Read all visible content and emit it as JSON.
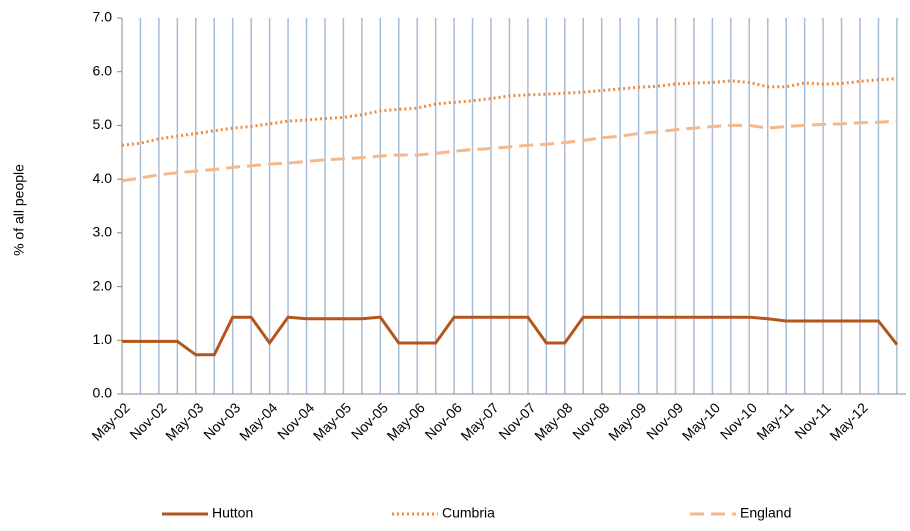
{
  "chart_data": {
    "type": "line",
    "y_label": "% of all people",
    "categories": [
      "May-02",
      null,
      "Nov-02",
      null,
      "May-03",
      null,
      "Nov-03",
      null,
      "May-04",
      null,
      "Nov-04",
      null,
      "May-05",
      null,
      "Nov-05",
      null,
      "May-06",
      null,
      "Nov-06",
      null,
      "May-07",
      null,
      "Nov-07",
      null,
      "May-08",
      null,
      "Nov-08",
      null,
      "May-09",
      null,
      "Nov-09",
      null,
      "May-10",
      null,
      "Nov-10",
      null,
      "May-11",
      null,
      "Nov-11",
      null,
      "May-12",
      null,
      null
    ],
    "series": [
      {
        "name": "Hutton",
        "color": "#b5541c",
        "dash": "solid",
        "values": [
          0.98,
          0.98,
          0.98,
          0.98,
          0.73,
          0.73,
          1.43,
          1.43,
          0.95,
          1.43,
          1.4,
          1.4,
          1.4,
          1.4,
          1.43,
          0.95,
          0.95,
          0.95,
          1.43,
          1.43,
          1.43,
          1.43,
          1.43,
          0.95,
          0.95,
          1.43,
          1.43,
          1.43,
          1.43,
          1.43,
          1.43,
          1.43,
          1.43,
          1.43,
          1.43,
          1.4,
          1.36,
          1.36,
          1.36,
          1.36,
          1.36,
          1.36,
          0.92
        ]
      },
      {
        "name": "Cumbria",
        "color": "#f08a3c",
        "dash": "dotted",
        "values": [
          4.63,
          4.67,
          4.75,
          4.8,
          4.85,
          4.9,
          4.95,
          4.98,
          5.03,
          5.08,
          5.1,
          5.13,
          5.15,
          5.2,
          5.27,
          5.3,
          5.32,
          5.4,
          5.43,
          5.46,
          5.5,
          5.55,
          5.57,
          5.58,
          5.6,
          5.62,
          5.65,
          5.68,
          5.71,
          5.73,
          5.77,
          5.79,
          5.8,
          5.83,
          5.8,
          5.72,
          5.72,
          5.79,
          5.77,
          5.78,
          5.82,
          5.85,
          5.87
        ]
      },
      {
        "name": "England",
        "color": "#f5b88a",
        "dash": "dashed",
        "values": [
          3.97,
          4.02,
          4.08,
          4.12,
          4.15,
          4.18,
          4.22,
          4.25,
          4.28,
          4.3,
          4.33,
          4.36,
          4.38,
          4.4,
          4.43,
          4.45,
          4.45,
          4.48,
          4.52,
          4.55,
          4.57,
          4.6,
          4.63,
          4.65,
          4.68,
          4.72,
          4.77,
          4.8,
          4.85,
          4.88,
          4.92,
          4.95,
          4.98,
          5.0,
          5.0,
          4.95,
          4.98,
          5.0,
          5.02,
          5.03,
          5.05,
          5.06,
          5.08
        ]
      }
    ],
    "ylim": [
      0,
      7
    ],
    "yticks": [
      {
        "value": 0,
        "label": "0.0"
      },
      {
        "value": 1,
        "label": "1.0"
      },
      {
        "value": 2,
        "label": "2.0"
      },
      {
        "value": 3,
        "label": "3.0"
      },
      {
        "value": 4,
        "label": "4.0"
      },
      {
        "value": 5,
        "label": "5.0"
      },
      {
        "value": 6,
        "label": "6.0"
      },
      {
        "value": 7,
        "label": "7.0"
      }
    ],
    "grid": "vertical",
    "legend": "bottom"
  }
}
